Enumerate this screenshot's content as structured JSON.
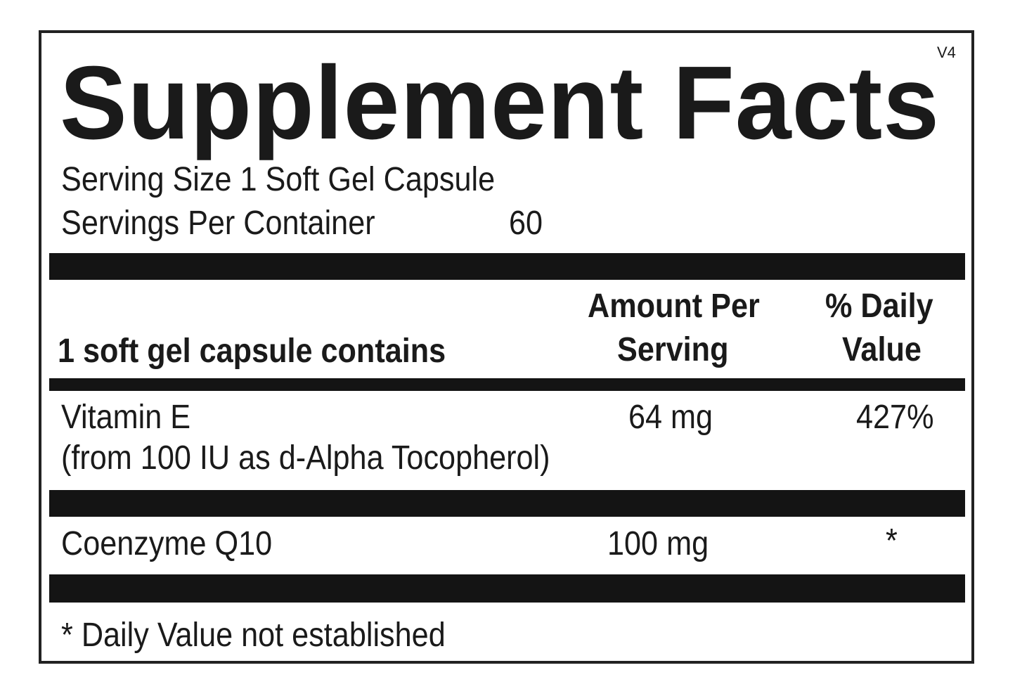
{
  "title": "Supplement Facts",
  "version": "V4",
  "serving_size": "Serving Size 1 Soft Gel Capsule",
  "servings_per_container_label": "Servings Per Container",
  "servings_per_container": "60",
  "header": {
    "contains": "1 soft gel capsule contains",
    "amount_1": "Amount Per",
    "amount_2": "Serving",
    "dv_1": "% Daily",
    "dv_2": "Value"
  },
  "rows": [
    {
      "name": "Vitamin E",
      "detail": "(from 100 IU as d-Alpha Tocopherol)",
      "amount": "64 mg",
      "dv": "427%"
    },
    {
      "name": "Coenzyme Q10",
      "amount": "100 mg",
      "dv": "*"
    }
  ],
  "footnote": "* Daily Value not established"
}
